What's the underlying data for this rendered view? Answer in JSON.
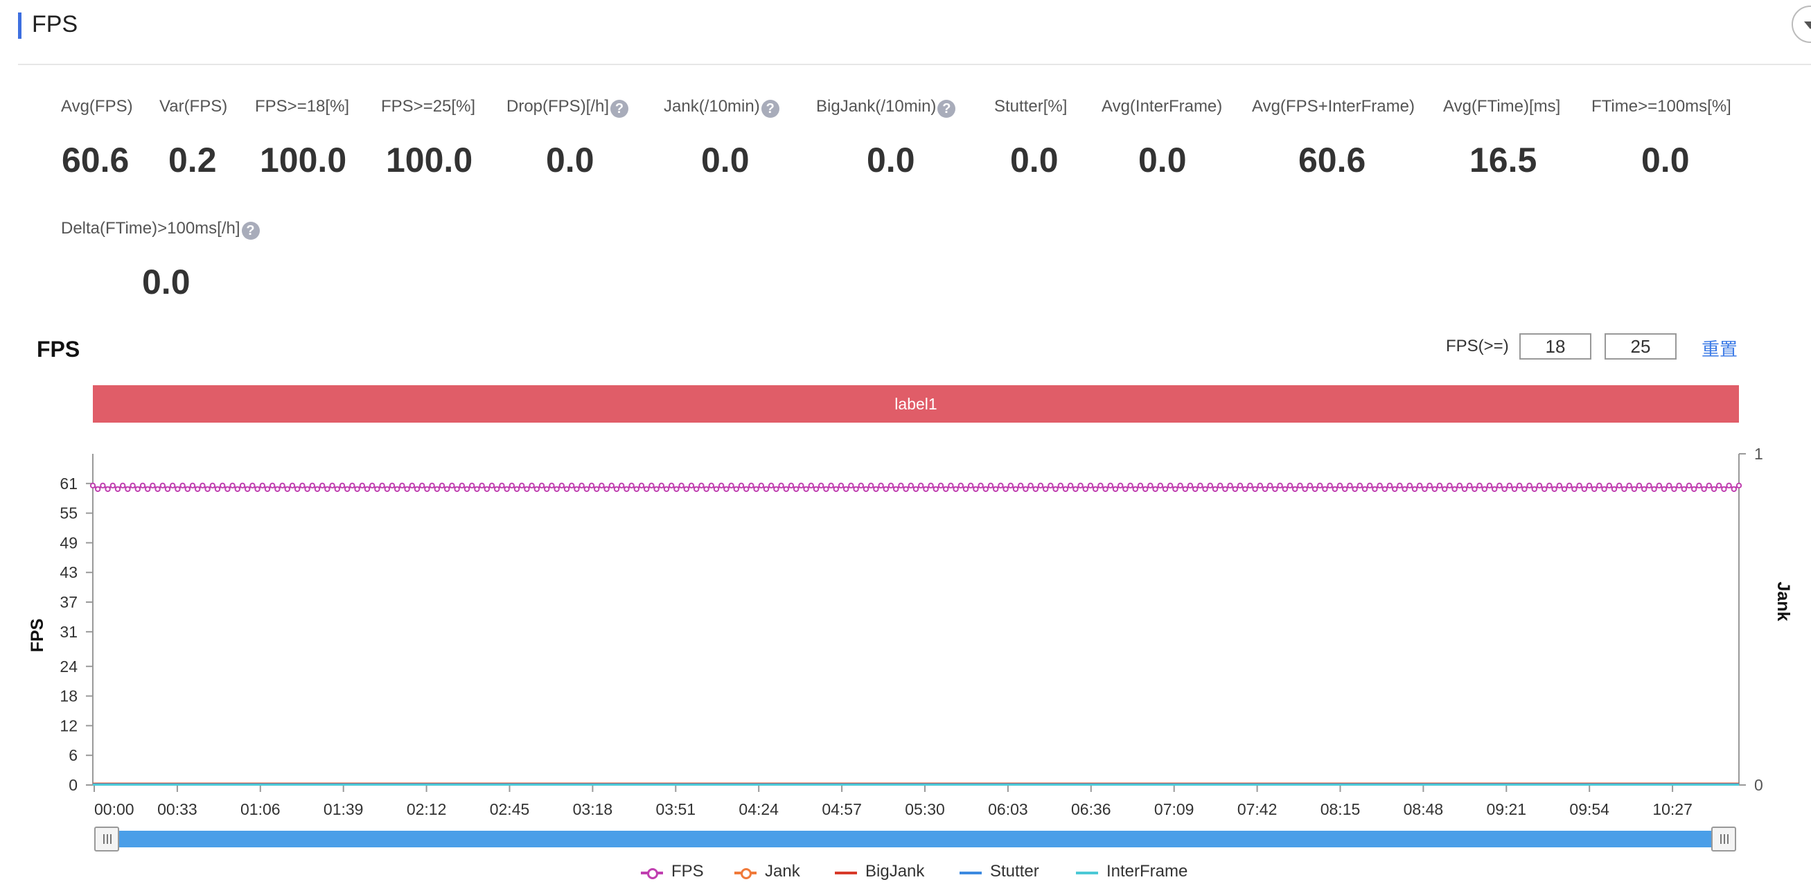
{
  "panel": {
    "title": "FPS"
  },
  "metrics": [
    {
      "label": "Avg(FPS)",
      "value": "60.6",
      "help": false
    },
    {
      "label": "Var(FPS)",
      "value": "0.2",
      "help": false
    },
    {
      "label": "FPS>=18[%]",
      "value": "100.0",
      "help": false
    },
    {
      "label": "FPS>=25[%]",
      "value": "100.0",
      "help": false
    },
    {
      "label": "Drop(FPS)[/h]",
      "value": "0.0",
      "help": true
    },
    {
      "label": "Jank(/10min)",
      "value": "0.0",
      "help": true
    },
    {
      "label": "BigJank(/10min)",
      "value": "0.0",
      "help": true
    },
    {
      "label": "Stutter[%]",
      "value": "0.0",
      "help": false
    },
    {
      "label": "Avg(InterFrame)",
      "value": "0.0",
      "help": false
    },
    {
      "label": "Avg(FPS+InterFrame)",
      "value": "60.6",
      "help": false
    },
    {
      "label": "Avg(FTime)[ms]",
      "value": "16.5",
      "help": false
    },
    {
      "label": "FTime>=100ms[%]",
      "value": "0.0",
      "help": false
    },
    {
      "label": "Delta(FTime)>100ms[/h]",
      "value": "0.0",
      "help": true
    }
  ],
  "help_glyph": "?",
  "controls": {
    "fps_label": "FPS(>=)",
    "threshold_1": "18",
    "threshold_2": "25",
    "reset_label": "重置"
  },
  "colors": {
    "fps": "#c03fb0",
    "jank": "#f07a3a",
    "bigjank": "#d83a2a",
    "stutter": "#3d8ae0",
    "interframe": "#4cc9d6",
    "label_band": "#e05d68",
    "slider": "#4a9ee8",
    "accent": "#3d6fe0"
  },
  "chart_data": {
    "type": "line",
    "title": "FPS",
    "band_label": "label1",
    "ylabel": "FPS",
    "ylabel_right": "Jank",
    "ylim": [
      0,
      67
    ],
    "ylim_right": [
      0,
      1
    ],
    "yticks": [
      0,
      6,
      12,
      18,
      24,
      31,
      37,
      43,
      49,
      55,
      61
    ],
    "yticks_right": [
      0,
      1
    ],
    "x_range": [
      "00:00",
      "10:57"
    ],
    "xticks": [
      "00:00",
      "00:33",
      "01:06",
      "01:39",
      "02:12",
      "02:45",
      "03:18",
      "03:51",
      "04:24",
      "04:57",
      "05:30",
      "06:03",
      "06:36",
      "07:09",
      "07:42",
      "08:15",
      "08:48",
      "09:21",
      "09:54",
      "10:27"
    ],
    "series": [
      {
        "name": "FPS",
        "axis": "left",
        "pattern": "oscillating",
        "values_range": [
          60,
          61
        ],
        "marker": "circle"
      },
      {
        "name": "Jank",
        "axis": "right",
        "constant": 0,
        "marker": "circle"
      },
      {
        "name": "BigJank",
        "axis": "right",
        "constant": 0
      },
      {
        "name": "Stutter",
        "axis": "right",
        "constant": 0
      },
      {
        "name": "InterFrame",
        "axis": "right",
        "constant": 0
      }
    ],
    "legend_position": "bottom-center",
    "grid": false
  }
}
